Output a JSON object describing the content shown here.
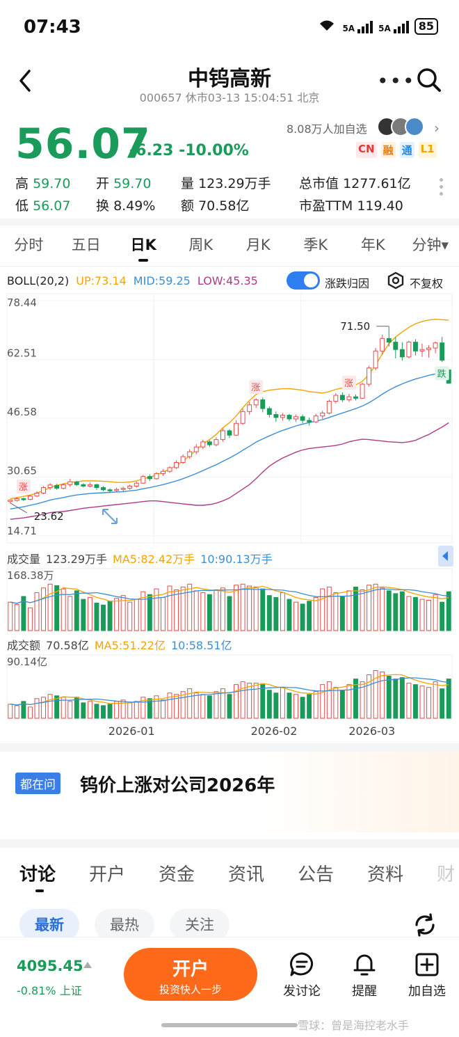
{
  "status_bar": {
    "time": "07:43",
    "sig1": "5A",
    "sig2": "5A",
    "wifi": "6",
    "battery": "85"
  },
  "header": {
    "title": "中钨高新",
    "subtitle": "000657 休市03-13 15:04:51 北京"
  },
  "quote": {
    "price": "56.07",
    "change": "-6.23 -10.00%",
    "watchers": "8.08万人加自选",
    "tags": [
      "CN",
      "融",
      "通",
      "L1"
    ],
    "stats": [
      [
        [
          "高",
          "59.70"
        ],
        [
          "开",
          "59.70"
        ],
        [
          "量",
          "123.29万手"
        ],
        [
          "总市值",
          "1277.61亿"
        ]
      ],
      [
        [
          "低",
          "56.07"
        ],
        [
          "换",
          "8.49%"
        ],
        [
          "额",
          "70.58亿"
        ],
        [
          "市盈TTM",
          "119.40"
        ]
      ]
    ]
  },
  "period_tabs": [
    "分时",
    "五日",
    "日K",
    "周K",
    "月K",
    "季K",
    "年K",
    "分钟▾"
  ],
  "indicator": {
    "name": "BOLL(20,2)",
    "up": "UP:73.14",
    "mid": "MID:59.25",
    "low": "LOW:45.35",
    "toggle_label": "涨跌归因",
    "fq_label": "不复权"
  },
  "colors": {
    "up": "#e84a4a",
    "down": "#1a9b5a",
    "boll_up": "#f5a300",
    "boll_mid": "#3a8ed8",
    "boll_low": "#b03a8a",
    "accent": "#ff6a1a"
  },
  "chart_data": {
    "type": "candlestick",
    "y_ticks": [
      "78.44",
      "62.51",
      "46.58",
      "30.65",
      "14.71"
    ],
    "ylim": [
      14.71,
      78.44
    ],
    "annotations": {
      "high": "71.50",
      "low": "23.62",
      "rise": "涨",
      "fall": "跌"
    },
    "x_ticks": [
      "2026-01",
      "2026-02",
      "2026-03"
    ],
    "candles": [
      [
        24.0,
        24.4,
        23.6,
        24.6
      ],
      [
        24.3,
        24.8,
        24.0,
        25.2
      ],
      [
        24.8,
        24.6,
        24.2,
        25.1
      ],
      [
        24.6,
        25.5,
        24.4,
        25.8
      ],
      [
        25.5,
        26.3,
        25.2,
        26.8
      ],
      [
        26.3,
        27.8,
        26.0,
        28.2
      ],
      [
        27.8,
        28.5,
        27.2,
        29.0
      ],
      [
        28.4,
        27.6,
        27.2,
        28.8
      ],
      [
        27.6,
        28.6,
        27.3,
        29.0
      ],
      [
        28.6,
        29.4,
        28.0,
        30.2
      ],
      [
        29.3,
        28.6,
        28.2,
        29.6
      ],
      [
        28.6,
        28.2,
        27.8,
        29.0
      ],
      [
        28.2,
        28.6,
        27.8,
        29.2
      ],
      [
        28.6,
        27.8,
        27.2,
        28.8
      ],
      [
        27.8,
        27.2,
        26.8,
        28.2
      ],
      [
        27.2,
        27.0,
        26.5,
        27.6
      ],
      [
        27.0,
        27.3,
        26.6,
        27.8
      ],
      [
        27.3,
        27.6,
        26.8,
        28.0
      ],
      [
        27.6,
        28.2,
        27.2,
        28.6
      ],
      [
        28.2,
        29.0,
        27.8,
        29.4
      ],
      [
        29.0,
        30.8,
        28.8,
        31.2
      ],
      [
        30.8,
        30.2,
        29.6,
        31.4
      ],
      [
        30.2,
        31.6,
        30.0,
        32.0
      ],
      [
        31.6,
        32.2,
        31.0,
        32.8
      ],
      [
        32.2,
        33.2,
        31.8,
        33.6
      ],
      [
        33.2,
        34.6,
        32.8,
        35.2
      ],
      [
        34.6,
        36.2,
        34.2,
        36.8
      ],
      [
        36.2,
        37.5,
        35.6,
        38.2
      ],
      [
        37.5,
        38.8,
        36.8,
        39.6
      ],
      [
        38.8,
        40.2,
        38.2,
        40.8
      ],
      [
        40.2,
        39.4,
        38.8,
        40.6
      ],
      [
        39.4,
        40.8,
        39.0,
        41.4
      ],
      [
        40.8,
        43.2,
        40.2,
        43.8
      ],
      [
        43.2,
        42.0,
        41.2,
        43.6
      ],
      [
        42.0,
        45.2,
        41.8,
        46.0
      ],
      [
        45.2,
        48.4,
        44.8,
        49.2
      ],
      [
        48.4,
        50.2,
        47.6,
        51.0
      ],
      [
        50.2,
        51.6,
        49.4,
        52.0
      ],
      [
        51.6,
        49.2,
        48.2,
        52.2
      ],
      [
        49.2,
        47.6,
        46.8,
        49.8
      ],
      [
        47.6,
        46.8,
        45.6,
        48.4
      ],
      [
        46.8,
        47.4,
        45.9,
        48.0
      ],
      [
        47.4,
        46.4,
        45.8,
        47.8
      ],
      [
        46.4,
        47.0,
        45.6,
        47.6
      ],
      [
        47.0,
        46.0,
        45.2,
        47.6
      ],
      [
        46.0,
        45.6,
        44.6,
        46.8
      ],
      [
        45.6,
        47.2,
        45.2,
        47.8
      ],
      [
        47.2,
        48.0,
        46.4,
        48.6
      ],
      [
        48.0,
        51.2,
        47.6,
        51.6
      ],
      [
        51.2,
        52.8,
        50.6,
        53.4
      ],
      [
        52.8,
        51.6,
        51.0,
        53.6
      ],
      [
        51.6,
        52.4,
        51.0,
        53.2
      ],
      [
        52.4,
        52.0,
        51.4,
        53.0
      ],
      [
        52.0,
        55.8,
        51.8,
        56.2
      ],
      [
        55.8,
        60.2,
        55.2,
        60.8
      ],
      [
        60.2,
        64.8,
        59.6,
        65.6
      ],
      [
        64.8,
        68.2,
        63.8,
        69.2
      ],
      [
        68.2,
        67.2,
        66.0,
        71.5
      ],
      [
        67.2,
        65.2,
        62.8,
        68.6
      ],
      [
        65.2,
        63.2,
        62.2,
        67.2
      ],
      [
        63.2,
        67.2,
        62.8,
        67.6
      ],
      [
        67.2,
        64.8,
        63.6,
        68.0
      ],
      [
        64.8,
        65.2,
        63.2,
        66.8
      ],
      [
        65.2,
        65.6,
        63.0,
        66.4
      ],
      [
        65.6,
        67.0,
        64.2,
        67.4
      ],
      [
        67.0,
        62.3,
        61.8,
        68.6
      ],
      [
        59.7,
        56.07,
        56.07,
        59.7
      ]
    ],
    "boll_up": [
      24.8,
      25.1,
      25.4,
      25.8,
      26.3,
      27.0,
      27.8,
      28.4,
      28.8,
      29.2,
      29.4,
      29.6,
      29.6,
      29.6,
      29.5,
      29.4,
      29.2,
      29.2,
      29.3,
      29.6,
      30.2,
      30.6,
      31.2,
      32.0,
      32.8,
      33.8,
      35.0,
      36.4,
      38.0,
      39.6,
      40.8,
      42.2,
      44.0,
      45.4,
      47.2,
      49.4,
      51.4,
      53.0,
      53.8,
      54.2,
      54.4,
      54.6,
      54.6,
      54.4,
      54.2,
      53.8,
      53.6,
      53.4,
      53.8,
      54.4,
      54.8,
      55.2,
      55.6,
      56.6,
      58.4,
      61.0,
      64.0,
      66.8,
      68.6,
      70.0,
      71.2,
      72.2,
      72.8,
      73.2,
      73.4,
      73.3,
      73.14
    ],
    "boll_mid": [
      22.0,
      22.3,
      22.6,
      23.0,
      23.4,
      23.9,
      24.4,
      24.8,
      25.1,
      25.5,
      25.8,
      26.0,
      26.2,
      26.3,
      26.4,
      26.5,
      26.6,
      26.7,
      26.9,
      27.1,
      27.5,
      27.8,
      28.2,
      28.6,
      29.1,
      29.6,
      30.2,
      30.9,
      31.6,
      32.4,
      33.2,
      34.0,
      34.9,
      35.8,
      36.8,
      37.9,
      39.0,
      40.1,
      41.0,
      41.8,
      42.6,
      43.3,
      43.9,
      44.5,
      45.0,
      45.4,
      45.8,
      46.2,
      46.8,
      47.4,
      48.0,
      48.6,
      49.2,
      49.9,
      50.8,
      51.9,
      53.1,
      54.2,
      55.1,
      55.9,
      56.6,
      57.2,
      57.7,
      58.2,
      58.6,
      58.9,
      59.25
    ],
    "boll_low": [
      19.2,
      19.4,
      19.6,
      19.9,
      20.2,
      20.6,
      21.0,
      21.2,
      21.3,
      21.6,
      21.9,
      22.2,
      22.4,
      22.6,
      22.8,
      23.0,
      23.2,
      23.4,
      23.6,
      23.8,
      24.0,
      24.2,
      24.2,
      24.0,
      23.8,
      23.6,
      23.4,
      23.2,
      23.0,
      23.0,
      23.2,
      23.6,
      24.2,
      25.0,
      26.2,
      27.4,
      28.6,
      30.2,
      32.0,
      33.6,
      34.8,
      35.8,
      36.6,
      37.4,
      38.0,
      38.4,
      38.6,
      38.8,
      39.0,
      39.2,
      39.6,
      40.2,
      40.6,
      40.9,
      40.8,
      40.6,
      40.4,
      40.2,
      40.1,
      40.0,
      40.2,
      40.6,
      41.4,
      42.2,
      43.2,
      44.2,
      45.35
    ],
    "volume": [
      60,
      55,
      72,
      48,
      80,
      90,
      98,
      95,
      88,
      72,
      84,
      66,
      70,
      58,
      54,
      62,
      68,
      74,
      60,
      66,
      82,
      76,
      88,
      70,
      94,
      86,
      92,
      98,
      84,
      80,
      76,
      86,
      90,
      72,
      96,
      98,
      94,
      92,
      88,
      74,
      70,
      80,
      66,
      60,
      56,
      62,
      70,
      88,
      92,
      80,
      72,
      84,
      92,
      86,
      96,
      98,
      90,
      84,
      78,
      82,
      72,
      70,
      66,
      64,
      76,
      60,
      82
    ],
    "amount": [
      20,
      18,
      24,
      16,
      28,
      30,
      34,
      32,
      30,
      24,
      30,
      22,
      24,
      20,
      18,
      20,
      24,
      26,
      22,
      24,
      30,
      28,
      32,
      26,
      36,
      34,
      38,
      42,
      36,
      34,
      32,
      38,
      42,
      34,
      48,
      52,
      50,
      50,
      48,
      40,
      36,
      44,
      36,
      34,
      30,
      34,
      38,
      48,
      52,
      44,
      40,
      48,
      56,
      52,
      62,
      68,
      66,
      60,
      56,
      58,
      50,
      48,
      46,
      44,
      52,
      42,
      56
    ]
  },
  "volume_panel": {
    "label": "成交量",
    "value": "123.29万手",
    "ma5": "MA5:82.42万手",
    "ma10": "10:90.13万手",
    "max": "168.38万"
  },
  "amount_panel": {
    "label": "成交额",
    "value": "70.58亿",
    "ma5": "MA5:51.22亿",
    "ma10": "10:58.51亿",
    "max": "90.14亿"
  },
  "question": {
    "tag": "都在问",
    "text": "钨价上涨对公司2026年"
  },
  "discussion_tabs": [
    "讨论",
    "开户",
    "资金",
    "资讯",
    "公告",
    "资料",
    "财"
  ],
  "filter_pills": [
    "最新",
    "最热",
    "关注"
  ],
  "bottom": {
    "index_value": "4095.45",
    "index_sub": "-0.81% 上证",
    "open_title": "开户",
    "open_sub": "投资快人一步",
    "actions": [
      "发讨论",
      "提醒",
      "加自选"
    ],
    "watermark": "雪球：曾是海控老水手"
  }
}
